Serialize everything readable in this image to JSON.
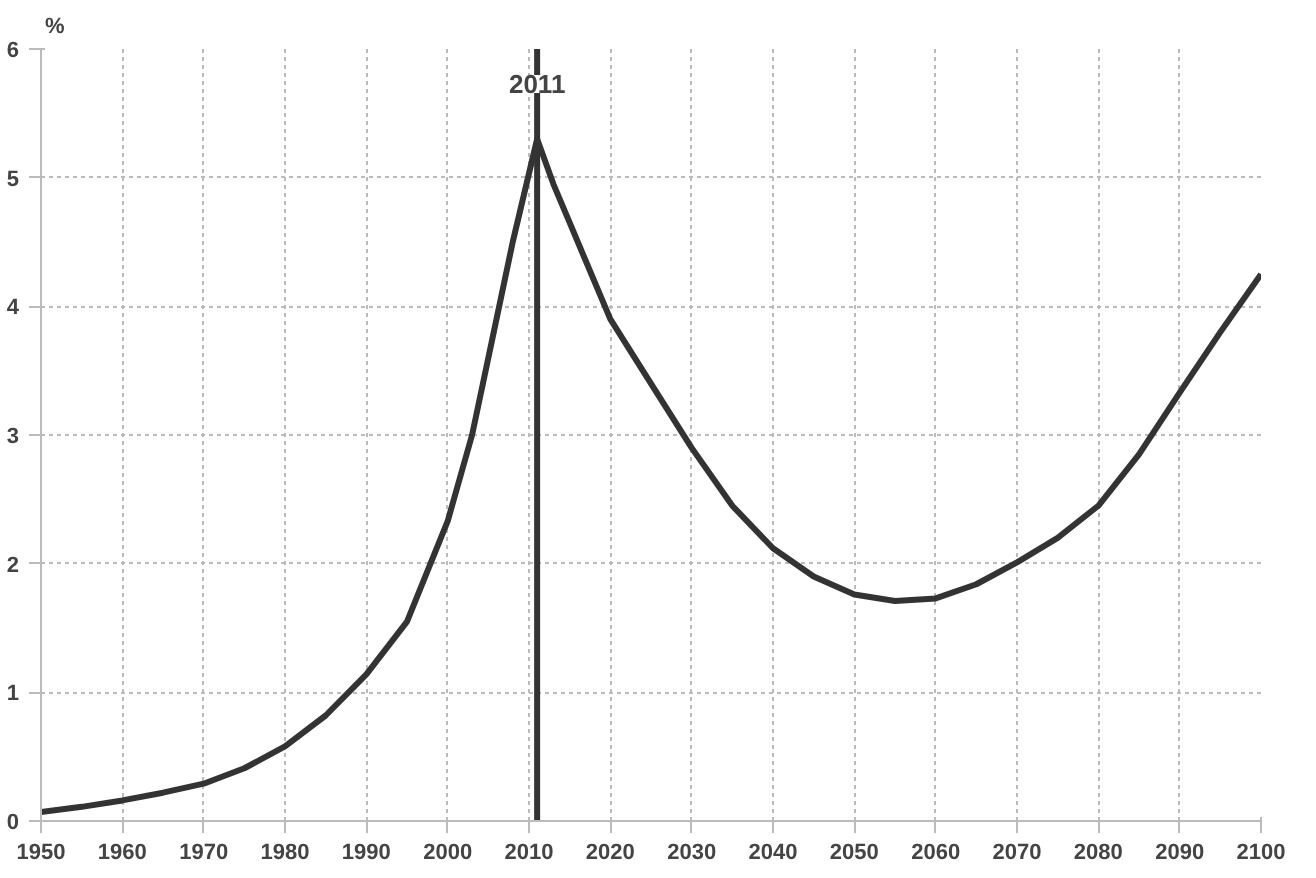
{
  "chart_data": {
    "type": "line",
    "ylabel": "%",
    "x": [
      1950,
      1955,
      1960,
      1965,
      1970,
      1975,
      1980,
      1985,
      1990,
      1995,
      2000,
      2003,
      2005,
      2008,
      2011,
      2013,
      2015,
      2020,
      2025,
      2030,
      2035,
      2040,
      2045,
      2050,
      2055,
      2060,
      2065,
      2070,
      2075,
      2080,
      2085,
      2090,
      2095,
      2100
    ],
    "series": [
      {
        "color": "#333333",
        "values": [
          0.07,
          0.11,
          0.16,
          0.22,
          0.29,
          0.41,
          0.58,
          0.82,
          1.14,
          1.55,
          2.33,
          3.0,
          3.6,
          4.5,
          5.3,
          4.95,
          4.65,
          3.9,
          3.4,
          2.9,
          2.45,
          2.12,
          1.9,
          1.76,
          1.71,
          1.73,
          1.84,
          2.01,
          2.2,
          2.45,
          2.85,
          3.33,
          3.8,
          4.25
        ]
      }
    ],
    "xlim": [
      1950,
      2100
    ],
    "xticks": [
      1950,
      1960,
      1970,
      1980,
      1990,
      2000,
      2010,
      2020,
      2030,
      2040,
      2050,
      2060,
      2070,
      2080,
      2090,
      2100
    ],
    "ylim": [
      0,
      6
    ],
    "yticks": [
      0,
      1,
      2,
      3,
      4,
      5,
      6
    ],
    "ref_lines": [
      {
        "axis": "x",
        "value": 2011,
        "label": "2011",
        "color": "#333333"
      }
    ],
    "grid": true,
    "marker": "none",
    "line_style": "solid"
  }
}
